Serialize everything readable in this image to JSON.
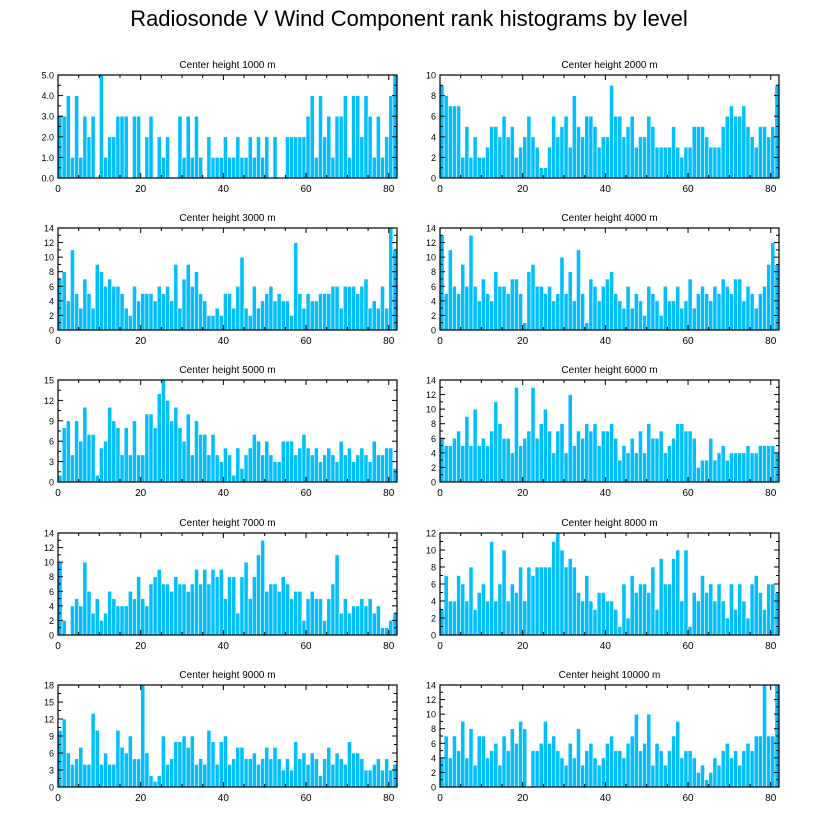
{
  "figure": {
    "title": "Radiosonde V Wind Component rank histograms by level"
  },
  "colors": {
    "bar": "#00BFFF",
    "bar_edge": "#ffffff",
    "axis": "#000000"
  },
  "chart_data": [
    {
      "type": "bar",
      "title": "Center height 1000 m",
      "xlim": [
        0,
        82
      ],
      "ylim": [
        0,
        5
      ],
      "xticks": [
        "0",
        "20",
        "40",
        "60",
        "80"
      ],
      "yticks": [
        "0.0",
        "1.0",
        "2.0",
        "3.0",
        "4.0",
        "5.0"
      ],
      "values": [
        3,
        3,
        4,
        1,
        4,
        1,
        3,
        2,
        3,
        0,
        5,
        1,
        2,
        2,
        3,
        3,
        3,
        0,
        3,
        3,
        0,
        2,
        3,
        0,
        2,
        1,
        2,
        0,
        0,
        3,
        1,
        3,
        1,
        3,
        1,
        0,
        2,
        1,
        1,
        1,
        2,
        1,
        1,
        2,
        1,
        1,
        2,
        1,
        2,
        1,
        2,
        0,
        2,
        0,
        0,
        2,
        2,
        2,
        2,
        2,
        3,
        4,
        1,
        4,
        2,
        3,
        1,
        3,
        3,
        4,
        1,
        4,
        4,
        2,
        4,
        3,
        1,
        3,
        1,
        2,
        4,
        5
      ]
    },
    {
      "type": "bar",
      "title": "Center height 2000 m",
      "xlim": [
        0,
        82
      ],
      "ylim": [
        0,
        10
      ],
      "xticks": [
        "0",
        "20",
        "40",
        "60",
        "80"
      ],
      "yticks": [
        "0",
        "2",
        "4",
        "6",
        "8",
        "10"
      ],
      "values": [
        9,
        8,
        7,
        7,
        7,
        2,
        5,
        2,
        4,
        2,
        2,
        3,
        5,
        5,
        4,
        6,
        4,
        5,
        2,
        3,
        4,
        6,
        4,
        3,
        1,
        1,
        3,
        6,
        4,
        5,
        6,
        3,
        8,
        5,
        4,
        6,
        6,
        5,
        3,
        4,
        4,
        9,
        6,
        6,
        4,
        5,
        6,
        3,
        4,
        4,
        6,
        5,
        3,
        3,
        3,
        3,
        5,
        3,
        2,
        3,
        3,
        5,
        5,
        5,
        4,
        3,
        3,
        3,
        5,
        6,
        7,
        6,
        6,
        7,
        5,
        4,
        3,
        5,
        5,
        4,
        5,
        9
      ]
    },
    {
      "type": "bar",
      "title": "Center height 3000 m",
      "xlim": [
        0,
        82
      ],
      "ylim": [
        0,
        14
      ],
      "xticks": [
        "0",
        "20",
        "40",
        "60",
        "80"
      ],
      "yticks": [
        "0",
        "2",
        "4",
        "6",
        "8",
        "10",
        "12",
        "14"
      ],
      "values": [
        7,
        8,
        4,
        11,
        5,
        3,
        7,
        5,
        3,
        9,
        8,
        6,
        7,
        6,
        6,
        5,
        3,
        2,
        6,
        4,
        5,
        5,
        5,
        4,
        6,
        5,
        6,
        4,
        9,
        3,
        7,
        9,
        6,
        8,
        5,
        4,
        2,
        2,
        3,
        2,
        5,
        5,
        3,
        6,
        10,
        3,
        2,
        6,
        3,
        4,
        5,
        6,
        4,
        5,
        4,
        4,
        2,
        12,
        5,
        3,
        5,
        4,
        4,
        5,
        5,
        5,
        6,
        6,
        3,
        6,
        6,
        6,
        5,
        6,
        7,
        3,
        4,
        3,
        6,
        3,
        14,
        11
      ]
    },
    {
      "type": "bar",
      "title": "Center height 4000 m",
      "xlim": [
        0,
        82
      ],
      "ylim": [
        0,
        14
      ],
      "xticks": [
        "0",
        "20",
        "40",
        "60",
        "80"
      ],
      "yticks": [
        "0",
        "2",
        "4",
        "6",
        "8",
        "10",
        "12",
        "14"
      ],
      "values": [
        13,
        5,
        11,
        6,
        5,
        9,
        6,
        13,
        6,
        4,
        7,
        5,
        4,
        8,
        6,
        6,
        5,
        7,
        7,
        5,
        1,
        8,
        9,
        6,
        6,
        5,
        6,
        4,
        5,
        10,
        5,
        8,
        4,
        11,
        5,
        1,
        7,
        6,
        4,
        6,
        7,
        8,
        5,
        4,
        3,
        6,
        3,
        5,
        4,
        2,
        6,
        5,
        4,
        2,
        6,
        4,
        4,
        6,
        3,
        4,
        7,
        3,
        5,
        6,
        5,
        4,
        6,
        5,
        7,
        6,
        5,
        7,
        7,
        4,
        6,
        5,
        3,
        5,
        6,
        9,
        12,
        9
      ]
    },
    {
      "type": "bar",
      "title": "Center height 5000 m",
      "xlim": [
        0,
        82
      ],
      "ylim": [
        0,
        15
      ],
      "xticks": [
        "0",
        "20",
        "40",
        "60",
        "80"
      ],
      "yticks": [
        "0",
        "3",
        "6",
        "9",
        "12",
        "15"
      ],
      "values": [
        1,
        8,
        9,
        4,
        9,
        6,
        11,
        7,
        7,
        1,
        5,
        6,
        11,
        9,
        8,
        4,
        8,
        4,
        9,
        4,
        4,
        10,
        10,
        8,
        13,
        15,
        12,
        9,
        11,
        8,
        6,
        10,
        4,
        9,
        7,
        7,
        4,
        7,
        4,
        3,
        5,
        4,
        1,
        5,
        2,
        4,
        5,
        7,
        6,
        4,
        6,
        4,
        3,
        3,
        6,
        6,
        6,
        4,
        5,
        7,
        5,
        4,
        5,
        3,
        4,
        5,
        4,
        3,
        6,
        4,
        5,
        3,
        4,
        5,
        4,
        3,
        6,
        4,
        4,
        5,
        5,
        2
      ]
    },
    {
      "type": "bar",
      "title": "Center height 6000 m",
      "xlim": [
        0,
        82
      ],
      "ylim": [
        0,
        14
      ],
      "xticks": [
        "0",
        "20",
        "40",
        "60",
        "80"
      ],
      "yticks": [
        "0",
        "2",
        "4",
        "6",
        "8",
        "10",
        "12",
        "14"
      ],
      "values": [
        6,
        5,
        5,
        6,
        7,
        5,
        9,
        5,
        10,
        5,
        6,
        5,
        7,
        11,
        8,
        6,
        6,
        4,
        13,
        5,
        6,
        7,
        13,
        6,
        8,
        10,
        7,
        4,
        7,
        8,
        4,
        12,
        5,
        7,
        6,
        8,
        7,
        8,
        5,
        7,
        7,
        8,
        6,
        3,
        5,
        4,
        6,
        4,
        7,
        4,
        8,
        6,
        6,
        7,
        4,
        5,
        6,
        8,
        8,
        7,
        7,
        6,
        2,
        3,
        3,
        6,
        3,
        4,
        5,
        3,
        4,
        4,
        4,
        4,
        5,
        4,
        4,
        5,
        5,
        5,
        5,
        4
      ]
    },
    {
      "type": "bar",
      "title": "Center height 7000 m",
      "xlim": [
        0,
        82
      ],
      "ylim": [
        0,
        14
      ],
      "xticks": [
        "0",
        "20",
        "40",
        "60",
        "80"
      ],
      "yticks": [
        "0",
        "2",
        "4",
        "6",
        "8",
        "10",
        "12",
        "14"
      ],
      "values": [
        10,
        2,
        0,
        4,
        5,
        4,
        10,
        6,
        3,
        5,
        2,
        3,
        6,
        5,
        4,
        4,
        4,
        6,
        5,
        8,
        5,
        4,
        7,
        8,
        9,
        7,
        7,
        6,
        8,
        7,
        7,
        6,
        7,
        9,
        7,
        9,
        7,
        9,
        8,
        9,
        5,
        8,
        8,
        3,
        8,
        10,
        5,
        8,
        11,
        13,
        6,
        7,
        7,
        6,
        8,
        7,
        5,
        6,
        6,
        2,
        5,
        6,
        5,
        5,
        2,
        5,
        7,
        11,
        3,
        5,
        3,
        4,
        4,
        5,
        4,
        5,
        3,
        4,
        1,
        1,
        2,
        3
      ]
    },
    {
      "type": "bar",
      "title": "Center height 8000 m",
      "xlim": [
        0,
        82
      ],
      "ylim": [
        0,
        12
      ],
      "xticks": [
        "0",
        "20",
        "40",
        "60",
        "80"
      ],
      "yticks": [
        "0",
        "2",
        "4",
        "6",
        "8",
        "10",
        "12"
      ],
      "values": [
        3,
        7,
        4,
        4,
        7,
        6,
        4,
        8,
        3,
        5,
        6,
        4,
        11,
        4,
        6,
        10,
        4,
        6,
        5,
        8,
        4,
        8,
        7,
        8,
        8,
        8,
        8,
        11,
        12,
        10,
        8,
        9,
        8,
        5,
        4,
        7,
        4,
        3,
        5,
        5,
        4,
        4,
        3,
        1,
        6,
        2,
        7,
        5,
        6,
        6,
        5,
        8,
        3,
        9,
        6,
        6,
        9,
        10,
        4,
        10,
        1,
        5,
        4,
        7,
        5,
        6,
        4,
        6,
        4,
        2,
        6,
        3,
        6,
        4,
        2,
        6,
        7,
        5,
        3,
        6,
        6,
        5
      ]
    },
    {
      "type": "bar",
      "title": "Center height 9000 m",
      "xlim": [
        0,
        82
      ],
      "ylim": [
        0,
        18
      ],
      "xticks": [
        "0",
        "20",
        "40",
        "60",
        "80"
      ],
      "yticks": [
        "0",
        "3",
        "6",
        "9",
        "12",
        "15",
        "18"
      ],
      "values": [
        10,
        12,
        6,
        4,
        5,
        7,
        4,
        4,
        13,
        10,
        4,
        6,
        4,
        4,
        10,
        7,
        6,
        9,
        5,
        5,
        18,
        6,
        2,
        1,
        2,
        9,
        4,
        5,
        8,
        8,
        9,
        7,
        9,
        4,
        5,
        4,
        10,
        8,
        4,
        8,
        9,
        4,
        5,
        7,
        7,
        5,
        5,
        6,
        4,
        5,
        7,
        5,
        7,
        5,
        3,
        5,
        3,
        8,
        5,
        6,
        4,
        6,
        5,
        2,
        5,
        7,
        4,
        6,
        5,
        4,
        8,
        6,
        6,
        5,
        3,
        3,
        4,
        5,
        3,
        5,
        3,
        4
      ]
    },
    {
      "type": "bar",
      "title": "Center height 10000 m",
      "xlim": [
        0,
        82
      ],
      "ylim": [
        0,
        14
      ],
      "xticks": [
        "0",
        "20",
        "40",
        "60",
        "80"
      ],
      "yticks": [
        "0",
        "2",
        "4",
        "6",
        "8",
        "10",
        "12",
        "14"
      ],
      "values": [
        4,
        7,
        4,
        7,
        5,
        9,
        4,
        8,
        3,
        7,
        7,
        4,
        5,
        6,
        3,
        7,
        5,
        8,
        6,
        9,
        8,
        0,
        5,
        5,
        6,
        9,
        6,
        7,
        5,
        4,
        3,
        6,
        4,
        8,
        3,
        5,
        6,
        4,
        3,
        4,
        6,
        7,
        5,
        5,
        4,
        6,
        7,
        10,
        5,
        6,
        10,
        3,
        6,
        5,
        3,
        5,
        7,
        9,
        4,
        5,
        5,
        4,
        2,
        3,
        1,
        2,
        4,
        3,
        5,
        6,
        4,
        5,
        3,
        5,
        6,
        5,
        7,
        7,
        14,
        7,
        7,
        14
      ]
    }
  ]
}
